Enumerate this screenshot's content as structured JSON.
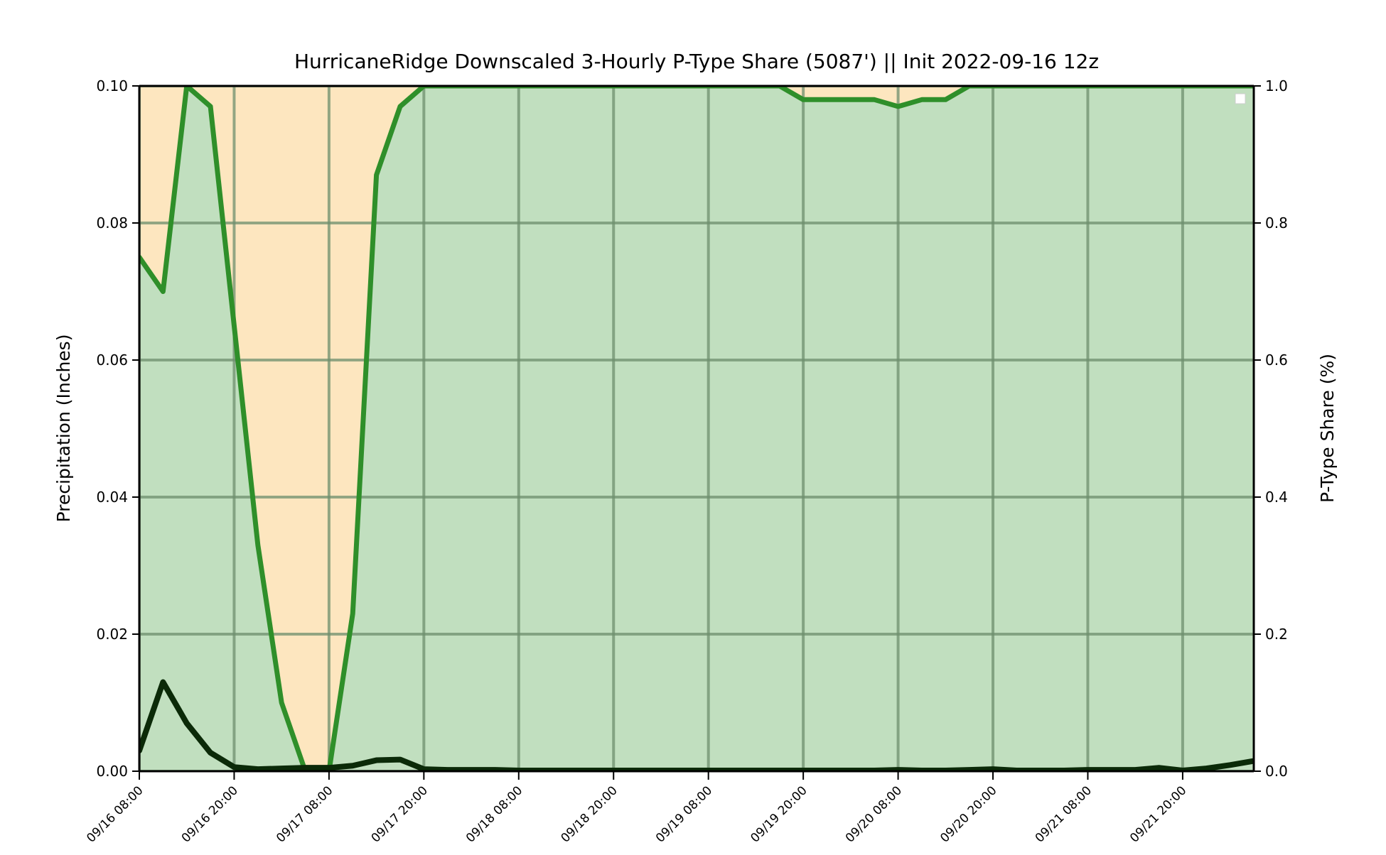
{
  "chart_data": {
    "type": "area",
    "title": "HurricaneRidge Downscaled 3-Hourly P-Type Share (5087') || Init 2022-09-16 12z",
    "ylabel": "Precipitation (Inches)",
    "y2label": "P-Type Share (%)",
    "xlabel": "",
    "ylim": [
      0,
      0.1
    ],
    "y2lim": [
      0,
      1.0
    ],
    "yticks": [
      "0.00",
      "0.02",
      "0.04",
      "0.06",
      "0.08",
      "0.10"
    ],
    "y2ticks": [
      "0.0",
      "0.2",
      "0.4",
      "0.6",
      "0.8",
      "1.0"
    ],
    "x_start": "2022-09-16 08:00",
    "x_step_hours": 3,
    "xticks": [
      "09/16 08:00",
      "09/16 20:00",
      "09/17 08:00",
      "09/17 20:00",
      "09/18 08:00",
      "09/18 20:00",
      "09/19 08:00",
      "09/19 20:00",
      "09/20 08:00",
      "09/20 20:00",
      "09/21 08:00",
      "09/21 20:00"
    ],
    "grid": true,
    "legend": "top-right",
    "series": [
      {
        "axis": "right",
        "role": "rain-share",
        "color": "#2f8f2a",
        "fill": "#c1dfbf",
        "values": [
          0.75,
          0.7,
          1.0,
          0.97,
          0.65,
          0.33,
          0.1,
          0.0,
          0.0,
          0.23,
          0.87,
          0.97,
          1.0,
          1.0,
          1.0,
          1.0,
          1.0,
          1.0,
          1.0,
          1.0,
          1.0,
          1.0,
          1.0,
          1.0,
          1.0,
          1.0,
          1.0,
          1.0,
          0.98,
          0.98,
          0.98,
          0.98,
          0.97,
          0.98,
          0.98,
          1.0,
          1.0,
          1.0,
          1.0,
          1.0,
          1.0,
          1.0,
          1.0,
          1.0,
          1.0,
          1.0,
          1.0,
          1.0
        ]
      },
      {
        "axis": "left",
        "role": "precipitation",
        "color": "#0b2a08",
        "values": [
          0.003,
          0.013,
          0.007,
          0.0027,
          0.0006,
          0.0003,
          0.0004,
          0.0005,
          0.0005,
          0.0008,
          0.0016,
          0.0017,
          0.0003,
          0.0002,
          0.0002,
          0.0002,
          0.0001,
          0.0001,
          0.0001,
          0.0001,
          0.0001,
          0.0001,
          0.0001,
          0.0001,
          0.0001,
          0.0001,
          0.0001,
          0.0001,
          0.0001,
          0.0001,
          0.0001,
          0.0001,
          0.0002,
          0.0001,
          0.0001,
          0.0002,
          0.0003,
          0.0001,
          0.0001,
          0.0001,
          0.0002,
          0.0002,
          0.0002,
          0.0005,
          0.0001,
          0.0004,
          0.0009,
          0.0015
        ]
      }
    ],
    "colors": {
      "background_fill": "#fde6bf",
      "grid_on_green": "#89a888",
      "grid_on_orange": "#c8ad83",
      "axes": "#000000"
    }
  }
}
